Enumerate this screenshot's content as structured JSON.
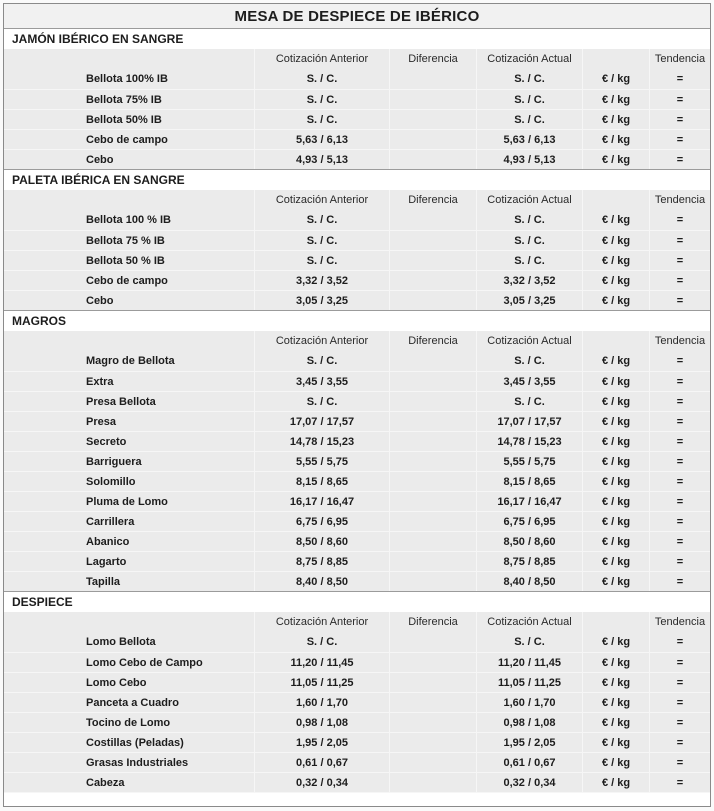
{
  "title": "MESA DE DESPIECE DE IBÉRICO",
  "columns": {
    "product": "",
    "anterior": "Cotización Anterior",
    "diferencia": "Diferencia",
    "actual": "Cotización Actual",
    "unit": "",
    "tendencia": "Tendencia"
  },
  "sections": [
    {
      "name": "JAMÓN IBÉRICO EN SANGRE",
      "rows": [
        {
          "label": "Bellota 100% IB",
          "anterior": "S. / C.",
          "diferencia": "",
          "actual": "S. / C.",
          "unit": "€ / kg",
          "tendencia": "="
        },
        {
          "label": "Bellota 75% IB",
          "anterior": "S. / C.",
          "diferencia": "",
          "actual": "S. / C.",
          "unit": "€ / kg",
          "tendencia": "="
        },
        {
          "label": "Bellota 50% IB",
          "anterior": "S. / C.",
          "diferencia": "",
          "actual": "S. / C.",
          "unit": "€ / kg",
          "tendencia": "="
        },
        {
          "label": "Cebo de campo",
          "anterior": "5,63 / 6,13",
          "diferencia": "",
          "actual": "5,63 / 6,13",
          "unit": "€ / kg",
          "tendencia": "="
        },
        {
          "label": "Cebo",
          "anterior": "4,93 / 5,13",
          "diferencia": "",
          "actual": "4,93 / 5,13",
          "unit": "€ / kg",
          "tendencia": "="
        }
      ]
    },
    {
      "name": "PALETA IBÉRICA EN SANGRE",
      "rows": [
        {
          "label": "Bellota 100 % IB",
          "anterior": "S. / C.",
          "diferencia": "",
          "actual": "S. / C.",
          "unit": "€ / kg",
          "tendencia": "="
        },
        {
          "label": "Bellota 75 % IB",
          "anterior": "S. / C.",
          "diferencia": "",
          "actual": "S. / C.",
          "unit": "€ / kg",
          "tendencia": "="
        },
        {
          "label": "Bellota 50 % IB",
          "anterior": "S. / C.",
          "diferencia": "",
          "actual": "S. / C.",
          "unit": "€ / kg",
          "tendencia": "="
        },
        {
          "label": "Cebo de campo",
          "anterior": "3,32 / 3,52",
          "diferencia": "",
          "actual": "3,32 / 3,52",
          "unit": "€ / kg",
          "tendencia": "="
        },
        {
          "label": "Cebo",
          "anterior": "3,05 / 3,25",
          "diferencia": "",
          "actual": "3,05 / 3,25",
          "unit": "€ / kg",
          "tendencia": "="
        }
      ]
    },
    {
      "name": "MAGROS",
      "rows": [
        {
          "label": "Magro de Bellota",
          "anterior": "S. / C.",
          "diferencia": "",
          "actual": "S. / C.",
          "unit": "€ / kg",
          "tendencia": "="
        },
        {
          "label": "Extra",
          "anterior": "3,45 / 3,55",
          "diferencia": "",
          "actual": "3,45 / 3,55",
          "unit": "€ / kg",
          "tendencia": "="
        },
        {
          "label": "Presa Bellota",
          "anterior": "S. / C.",
          "diferencia": "",
          "actual": "S. / C.",
          "unit": "€ / kg",
          "tendencia": "="
        },
        {
          "label": "Presa",
          "anterior": "17,07 / 17,57",
          "diferencia": "",
          "actual": "17,07 / 17,57",
          "unit": "€ / kg",
          "tendencia": "="
        },
        {
          "label": "Secreto",
          "anterior": "14,78 / 15,23",
          "diferencia": "",
          "actual": "14,78 / 15,23",
          "unit": "€ / kg",
          "tendencia": "="
        },
        {
          "label": "Barriguera",
          "anterior": "5,55 / 5,75",
          "diferencia": "",
          "actual": "5,55 / 5,75",
          "unit": "€ / kg",
          "tendencia": "="
        },
        {
          "label": "Solomillo",
          "anterior": "8,15 / 8,65",
          "diferencia": "",
          "actual": "8,15 / 8,65",
          "unit": "€ / kg",
          "tendencia": "="
        },
        {
          "label": "Pluma de Lomo",
          "anterior": "16,17 / 16,47",
          "diferencia": "",
          "actual": "16,17 / 16,47",
          "unit": "€ / kg",
          "tendencia": "="
        },
        {
          "label": "Carrillera",
          "anterior": "6,75 / 6,95",
          "diferencia": "",
          "actual": "6,75 / 6,95",
          "unit": "€ / kg",
          "tendencia": "="
        },
        {
          "label": "Abanico",
          "anterior": "8,50 / 8,60",
          "diferencia": "",
          "actual": "8,50 / 8,60",
          "unit": "€ / kg",
          "tendencia": "="
        },
        {
          "label": "Lagarto",
          "anterior": "8,75 / 8,85",
          "diferencia": "",
          "actual": "8,75 / 8,85",
          "unit": "€ / kg",
          "tendencia": "="
        },
        {
          "label": "Tapilla",
          "anterior": "8,40 / 8,50",
          "diferencia": "",
          "actual": "8,40 / 8,50",
          "unit": "€ / kg",
          "tendencia": "="
        }
      ]
    },
    {
      "name": "DESPIECE",
      "rows": [
        {
          "label": "Lomo Bellota",
          "anterior": "S. / C.",
          "diferencia": "",
          "actual": "S. / C.",
          "unit": "€ / kg",
          "tendencia": "="
        },
        {
          "label": "Lomo Cebo de Campo",
          "anterior": "11,20 / 11,45",
          "diferencia": "",
          "actual": "11,20 / 11,45",
          "unit": "€ / kg",
          "tendencia": "="
        },
        {
          "label": "Lomo Cebo",
          "anterior": "11,05 / 11,25",
          "diferencia": "",
          "actual": "11,05 / 11,25",
          "unit": "€ / kg",
          "tendencia": "="
        },
        {
          "label": "Panceta a Cuadro",
          "anterior": "1,60 / 1,70",
          "diferencia": "",
          "actual": "1,60 / 1,70",
          "unit": "€ / kg",
          "tendencia": "="
        },
        {
          "label": "Tocino de Lomo",
          "anterior": "0,98 / 1,08",
          "diferencia": "",
          "actual": "0,98 / 1,08",
          "unit": "€ / kg",
          "tendencia": "="
        },
        {
          "label": "Costillas (Peladas)",
          "anterior": "1,95 / 2,05",
          "diferencia": "",
          "actual": "1,95 / 2,05",
          "unit": "€ / kg",
          "tendencia": "="
        },
        {
          "label": "Grasas Industriales",
          "anterior": "0,61 / 0,67",
          "diferencia": "",
          "actual": "0,61 / 0,67",
          "unit": "€ / kg",
          "tendencia": "="
        },
        {
          "label": "Cabeza",
          "anterior": "0,32 / 0,34",
          "diferencia": "",
          "actual": "0,32 / 0,34",
          "unit": "€ / kg",
          "tendencia": "="
        }
      ]
    }
  ],
  "colors": {
    "page_bg": "#fafafa",
    "table_bg": "#ebebeb",
    "title_bg": "#f1f1f1",
    "section_bg": "#ffffff",
    "outer_border": "#8a8a8a",
    "section_line": "#9b9b9b",
    "cell_seam": "#f6f6f6",
    "text": "#1d1d1d"
  }
}
